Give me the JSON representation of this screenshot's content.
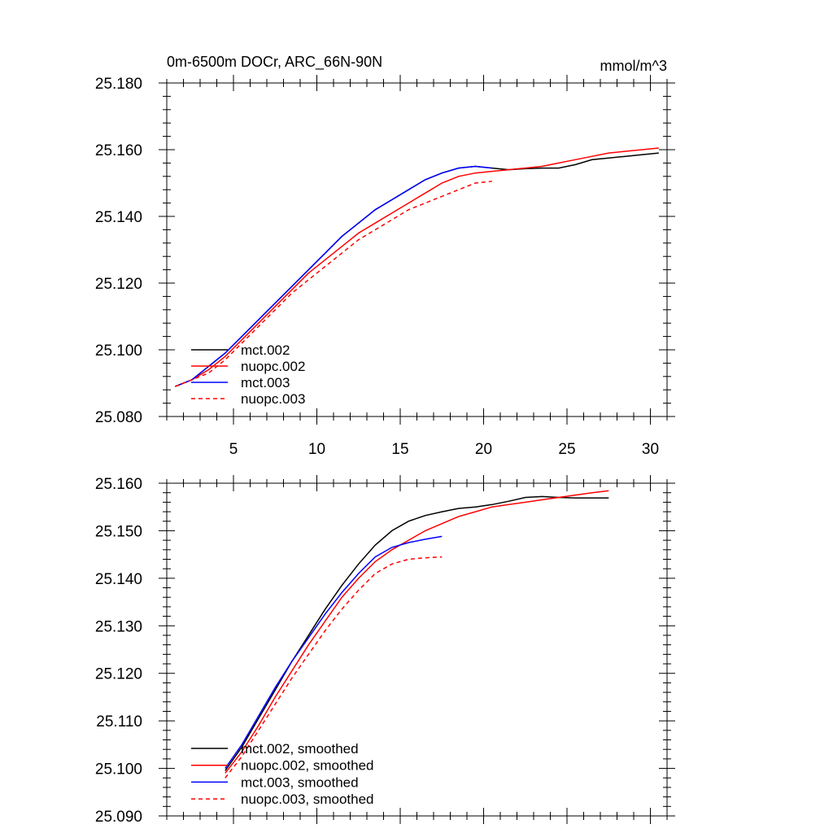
{
  "chart_data": [
    {
      "type": "line",
      "title": "0m-6500m DOCr, ARC_66N-90N",
      "units": "mmol/m^3",
      "xlim": [
        1,
        31
      ],
      "ylim": [
        25.08,
        25.18
      ],
      "xticks": [
        5,
        10,
        15,
        20,
        25,
        30
      ],
      "yticks": [
        25.08,
        25.1,
        25.12,
        25.14,
        25.16,
        25.18
      ],
      "ytick_labels": [
        "25.080",
        "25.100",
        "25.120",
        "25.140",
        "25.160",
        "25.180"
      ],
      "grid": false,
      "legend": "bottom-left",
      "series": [
        {
          "name": "mct.002",
          "color": "#000000",
          "dash": "solid",
          "x": [
            1.5,
            2.5,
            3.5,
            4.5,
            5.5,
            6.5,
            7.5,
            8.5,
            9.5,
            10.5,
            11.5,
            12.5,
            13.5,
            14.5,
            15.5,
            16.5,
            17.5,
            18.5,
            19.5,
            20.5,
            21.5,
            22.5,
            23.5,
            24.5,
            25.5,
            26.5,
            27.5,
            28.5,
            29.5,
            30.5
          ],
          "y": [
            25.089,
            25.091,
            25.095,
            25.099,
            25.104,
            25.109,
            25.114,
            25.119,
            25.124,
            25.129,
            25.134,
            25.138,
            25.142,
            25.145,
            25.148,
            25.151,
            25.153,
            25.1545,
            25.155,
            25.1545,
            25.154,
            25.1543,
            25.1545,
            25.1545,
            25.1555,
            25.157,
            25.1575,
            25.158,
            25.1585,
            25.159
          ]
        },
        {
          "name": "nuopc.002",
          "color": "#ff0000",
          "dash": "solid",
          "x": [
            1.5,
            2.5,
            3.5,
            4.5,
            5.5,
            6.5,
            7.5,
            8.5,
            9.5,
            10.5,
            11.5,
            12.5,
            13.5,
            14.5,
            15.5,
            16.5,
            17.5,
            18.5,
            19.5,
            20.5,
            21.5,
            22.5,
            23.5,
            24.5,
            25.5,
            26.5,
            27.5,
            28.5,
            29.5,
            30.5
          ],
          "y": [
            25.089,
            25.091,
            25.094,
            25.098,
            25.103,
            25.108,
            25.113,
            25.118,
            25.123,
            25.127,
            25.131,
            25.135,
            25.138,
            25.141,
            25.144,
            25.147,
            25.15,
            25.152,
            25.153,
            25.1535,
            25.154,
            25.1545,
            25.155,
            25.156,
            25.157,
            25.158,
            25.159,
            25.1595,
            25.16,
            25.1605
          ]
        },
        {
          "name": "mct.003",
          "color": "#0000ff",
          "dash": "solid",
          "x": [
            1.5,
            2.5,
            3.5,
            4.5,
            5.5,
            6.5,
            7.5,
            8.5,
            9.5,
            10.5,
            11.5,
            12.5,
            13.5,
            14.5,
            15.5,
            16.5,
            17.5,
            18.5,
            19.5,
            20.5
          ],
          "y": [
            25.089,
            25.091,
            25.095,
            25.099,
            25.104,
            25.109,
            25.114,
            25.119,
            25.124,
            25.129,
            25.134,
            25.138,
            25.142,
            25.145,
            25.148,
            25.151,
            25.153,
            25.1545,
            25.155,
            25.1545
          ]
        },
        {
          "name": "nuopc.003",
          "color": "#ff0000",
          "dash": "dashed",
          "x": [
            1.5,
            2.5,
            3.5,
            4.5,
            5.5,
            6.5,
            7.5,
            8.5,
            9.5,
            10.5,
            11.5,
            12.5,
            13.5,
            14.5,
            15.5,
            16.5,
            17.5,
            18.5,
            19.5,
            20.5
          ],
          "y": [
            25.089,
            25.091,
            25.093,
            25.097,
            25.102,
            25.107,
            25.112,
            25.117,
            25.121,
            25.125,
            25.129,
            25.133,
            25.136,
            25.139,
            25.142,
            25.144,
            25.146,
            25.148,
            25.15,
            25.1505
          ]
        }
      ]
    },
    {
      "type": "line",
      "xlim": [
        1,
        31
      ],
      "ylim": [
        25.09,
        25.16
      ],
      "xticks": [
        5,
        10,
        15,
        20,
        25,
        30
      ],
      "yticks": [
        25.09,
        25.1,
        25.11,
        25.12,
        25.13,
        25.14,
        25.15,
        25.16
      ],
      "ytick_labels": [
        "25.090",
        "25.100",
        "25.110",
        "25.120",
        "25.130",
        "25.140",
        "25.150",
        "25.160"
      ],
      "grid": false,
      "legend": "bottom-left",
      "series": [
        {
          "name": "mct.002, smoothed",
          "color": "#000000",
          "dash": "solid",
          "x": [
            4.5,
            5.5,
            6.5,
            7.5,
            8.5,
            9.5,
            10.5,
            11.5,
            12.5,
            13.5,
            14.5,
            15.5,
            16.5,
            17.5,
            18.5,
            19.5,
            20.5,
            21.5,
            22.5,
            23.5,
            24.5,
            25.5,
            26.5,
            27.5
          ],
          "y": [
            25.0995,
            25.1045,
            25.1105,
            25.1165,
            25.1225,
            25.128,
            25.1335,
            25.1385,
            25.143,
            25.147,
            25.15,
            25.152,
            25.1532,
            25.154,
            25.1547,
            25.155,
            25.1555,
            25.1562,
            25.157,
            25.1572,
            25.157,
            25.1569,
            25.1569,
            25.1569
          ]
        },
        {
          "name": "nuopc.002, smoothed",
          "color": "#ff0000",
          "dash": "solid",
          "x": [
            4.5,
            5.5,
            6.5,
            7.5,
            8.5,
            9.5,
            10.5,
            11.5,
            12.5,
            13.5,
            14.5,
            15.5,
            16.5,
            17.5,
            18.5,
            19.5,
            20.5,
            21.5,
            22.5,
            23.5,
            24.5,
            25.5,
            26.5,
            27.5
          ],
          "y": [
            25.099,
            25.1035,
            25.109,
            25.115,
            25.1205,
            25.126,
            25.131,
            25.136,
            25.14,
            25.1435,
            25.146,
            25.148,
            25.15,
            25.1515,
            25.153,
            25.154,
            25.155,
            25.1555,
            25.156,
            25.1565,
            25.157,
            25.1575,
            25.158,
            25.1584
          ]
        },
        {
          "name": "mct.003, smoothed",
          "color": "#0000ff",
          "dash": "solid",
          "x": [
            4.5,
            5.5,
            6.5,
            7.5,
            8.5,
            9.5,
            10.5,
            11.5,
            12.5,
            13.5,
            14.5,
            15.5,
            16.5,
            17.5
          ],
          "y": [
            25.1,
            25.105,
            25.111,
            25.117,
            25.1225,
            25.1275,
            25.1325,
            25.137,
            25.141,
            25.1445,
            25.1465,
            25.1475,
            25.1482,
            25.1488
          ]
        },
        {
          "name": "nuopc.003, smoothed",
          "color": "#ff0000",
          "dash": "dashed",
          "x": [
            4.5,
            5.5,
            6.5,
            7.5,
            8.5,
            9.5,
            10.5,
            11.5,
            12.5,
            13.5,
            14.5,
            15.5,
            16.5,
            17.5
          ],
          "y": [
            25.098,
            25.1025,
            25.108,
            25.1135,
            25.119,
            25.124,
            25.129,
            25.1335,
            25.1375,
            25.141,
            25.143,
            25.144,
            25.1443,
            25.1445
          ]
        }
      ]
    }
  ]
}
